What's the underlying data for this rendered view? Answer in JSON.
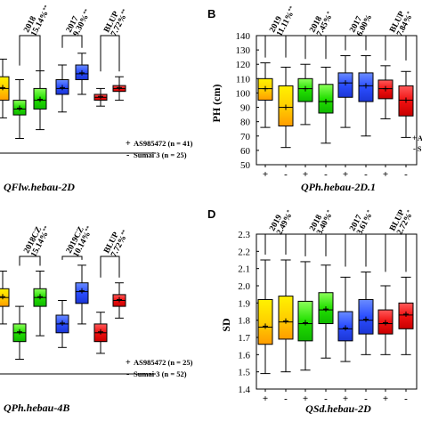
{
  "figure_panels": [
    {
      "letter": ""
    },
    {
      "letter": "B"
    },
    {
      "letter": ""
    },
    {
      "letter": "D"
    }
  ],
  "chart_data": [
    {
      "type": "box",
      "panel": "A (cropped)",
      "xlabel": "QFlw.hebau-2D",
      "ylabel": "",
      "groups": [
        {
          "header_line1": "",
          "header_line2": "",
          "star": "",
          "boxes": [
            {
              "min": 12,
              "q1": 18,
              "median": 22,
              "q3": 26,
              "max": 32
            }
          ]
        },
        {
          "header_line1": "2018",
          "header_line2": "15.14%",
          "star": "**",
          "boxes": [
            {
              "min": 5,
              "q1": 13,
              "median": 15,
              "q3": 18,
              "max": 25
            },
            {
              "min": 8,
              "q1": 15,
              "median": 18,
              "q3": 22,
              "max": 28
            }
          ]
        },
        {
          "header_line1": "2017",
          "header_line2": "9.30%",
          "star": "**",
          "boxes": [
            {
              "min": 14,
              "q1": 20,
              "median": 22,
              "q3": 25,
              "max": 30
            },
            {
              "min": 20,
              "q1": 25,
              "median": 27,
              "q3": 30,
              "max": 34
            }
          ]
        },
        {
          "header_line1": "BLUP",
          "header_line2": "7.72%",
          "star": "**",
          "boxes": [
            {
              "min": 16,
              "q1": 18,
              "median": 19,
              "q3": 20,
              "max": 22
            },
            {
              "min": 18,
              "q1": 21,
              "median": 22,
              "q3": 23,
              "max": 26
            }
          ]
        }
      ],
      "xticks": [],
      "legend": [
        {
          "mark": "+",
          "label": "AS985472 (n = 41)"
        },
        {
          "mark": "-",
          "label": "Sumai 3 (n = 25)"
        }
      ]
    },
    {
      "type": "box",
      "panel": "B",
      "xlabel": "QPh.hebau-2D.1",
      "ylabel": "PH (cm)",
      "ylim": [
        50,
        140
      ],
      "yticks": [
        50,
        60,
        70,
        80,
        90,
        100,
        110,
        120,
        130,
        140
      ],
      "groups": [
        {
          "header_line1": "2019",
          "header_line2": "11.11%",
          "star": "**",
          "boxes": [
            {
              "min": 76,
              "q1": 95,
              "median": 103,
              "q3": 110,
              "max": 121
            },
            {
              "min": 62,
              "q1": 77,
              "median": 90,
              "q3": 105,
              "max": 118
            }
          ]
        },
        {
          "header_line1": "2018",
          "header_line2": "7.45%",
          "star": "*",
          "boxes": [
            {
              "min": 78,
              "q1": 94,
              "median": 103,
              "q3": 110,
              "max": 120
            },
            {
              "min": 65,
              "q1": 86,
              "median": 94,
              "q3": 106,
              "max": 118
            }
          ]
        },
        {
          "header_line1": "2017",
          "header_line2": "6.00%",
          "star": "",
          "boxes": [
            {
              "min": 76,
              "q1": 97,
              "median": 107,
              "q3": 114,
              "max": 126
            },
            {
              "min": 70,
              "q1": 94,
              "median": 105,
              "q3": 114,
              "max": 126
            }
          ]
        },
        {
          "header_line1": "BLUP",
          "header_line2": "7.84%",
          "star": "*",
          "boxes": [
            {
              "min": 82,
              "q1": 96,
              "median": 103,
              "q3": 109,
              "max": 119
            },
            {
              "min": 69,
              "q1": 84,
              "median": 95,
              "q3": 105,
              "max": 115
            }
          ]
        }
      ],
      "xticks": [
        "+",
        "-",
        "+",
        "-",
        "+",
        "-",
        "+",
        "-"
      ],
      "legend": [
        {
          "mark": "+",
          "label": "A"
        },
        {
          "mark": "-",
          "label": "S"
        }
      ]
    },
    {
      "type": "box",
      "panel": "C (cropped)",
      "xlabel": "QPh.hebau-4B",
      "ylabel": "",
      "groups": [
        {
          "header_line1": "",
          "header_line2": "",
          "star": "",
          "boxes": [
            {
              "min": 92,
              "q1": 98,
              "median": 101,
              "q3": 104,
              "max": 110
            }
          ]
        },
        {
          "header_line1": "2018CZ",
          "header_line2": "15.14%",
          "star": "**",
          "boxes": [
            {
              "min": 80,
              "q1": 86,
              "median": 89,
              "q3": 92,
              "max": 98
            },
            {
              "min": 88,
              "q1": 98,
              "median": 101,
              "q3": 104,
              "max": 110
            }
          ]
        },
        {
          "header_line1": "2019CZ",
          "header_line2": "10.14%",
          "star": "**",
          "boxes": [
            {
              "min": 84,
              "q1": 89,
              "median": 92,
              "q3": 95,
              "max": 100
            },
            {
              "min": 92,
              "q1": 99,
              "median": 103,
              "q3": 106,
              "max": 112
            }
          ]
        },
        {
          "header_line1": "BLUP",
          "header_line2": "7.72%",
          "star": "**",
          "boxes": [
            {
              "min": 82,
              "q1": 86,
              "median": 89,
              "q3": 92,
              "max": 96
            },
            {
              "min": 94,
              "q1": 98,
              "median": 100,
              "q3": 102,
              "max": 106
            }
          ]
        }
      ],
      "xticks": [],
      "legend": [
        {
          "mark": "+",
          "label": "AS985472 (n = 25)"
        },
        {
          "mark": "-",
          "label": "Sumai 3 (n = 52)"
        }
      ]
    },
    {
      "type": "box",
      "panel": "D",
      "xlabel": "QSd.hebau-2D",
      "ylabel": "SD",
      "ylim": [
        1.4,
        2.3
      ],
      "yticks": [
        1.4,
        1.5,
        1.6,
        1.7,
        1.8,
        1.9,
        2.0,
        2.1,
        2.2,
        2.3
      ],
      "groups": [
        {
          "header_line1": "2019",
          "header_line2": "2.49%",
          "star": "*",
          "boxes": [
            {
              "min": 1.49,
              "q1": 1.66,
              "median": 1.76,
              "q3": 1.92,
              "max": 2.15
            },
            {
              "min": 1.5,
              "q1": 1.69,
              "median": 1.79,
              "q3": 1.94,
              "max": 2.15
            }
          ]
        },
        {
          "header_line1": "2018",
          "header_line2": "3.40%",
          "star": "*",
          "boxes": [
            {
              "min": 1.51,
              "q1": 1.68,
              "median": 1.78,
              "q3": 1.91,
              "max": 2.14
            },
            {
              "min": 1.58,
              "q1": 1.78,
              "median": 1.86,
              "q3": 1.96,
              "max": 2.12
            }
          ]
        },
        {
          "header_line1": "2017",
          "header_line2": "3.61%",
          "star": "*",
          "boxes": [
            {
              "min": 1.56,
              "q1": 1.68,
              "median": 1.75,
              "q3": 1.85,
              "max": 2.05
            },
            {
              "min": 1.6,
              "q1": 1.72,
              "median": 1.8,
              "q3": 1.92,
              "max": 2.08
            }
          ]
        },
        {
          "header_line1": "BLUP",
          "header_line2": "2.72%",
          "star": "*",
          "boxes": [
            {
              "min": 1.6,
              "q1": 1.72,
              "median": 1.78,
              "q3": 1.86,
              "max": 2.0
            },
            {
              "min": 1.6,
              "q1": 1.75,
              "median": 1.83,
              "q3": 1.9,
              "max": 2.05
            }
          ]
        }
      ],
      "xticks": [
        "+",
        "-",
        "+",
        "-",
        "+",
        "-",
        "+",
        "-"
      ],
      "legend": []
    }
  ]
}
